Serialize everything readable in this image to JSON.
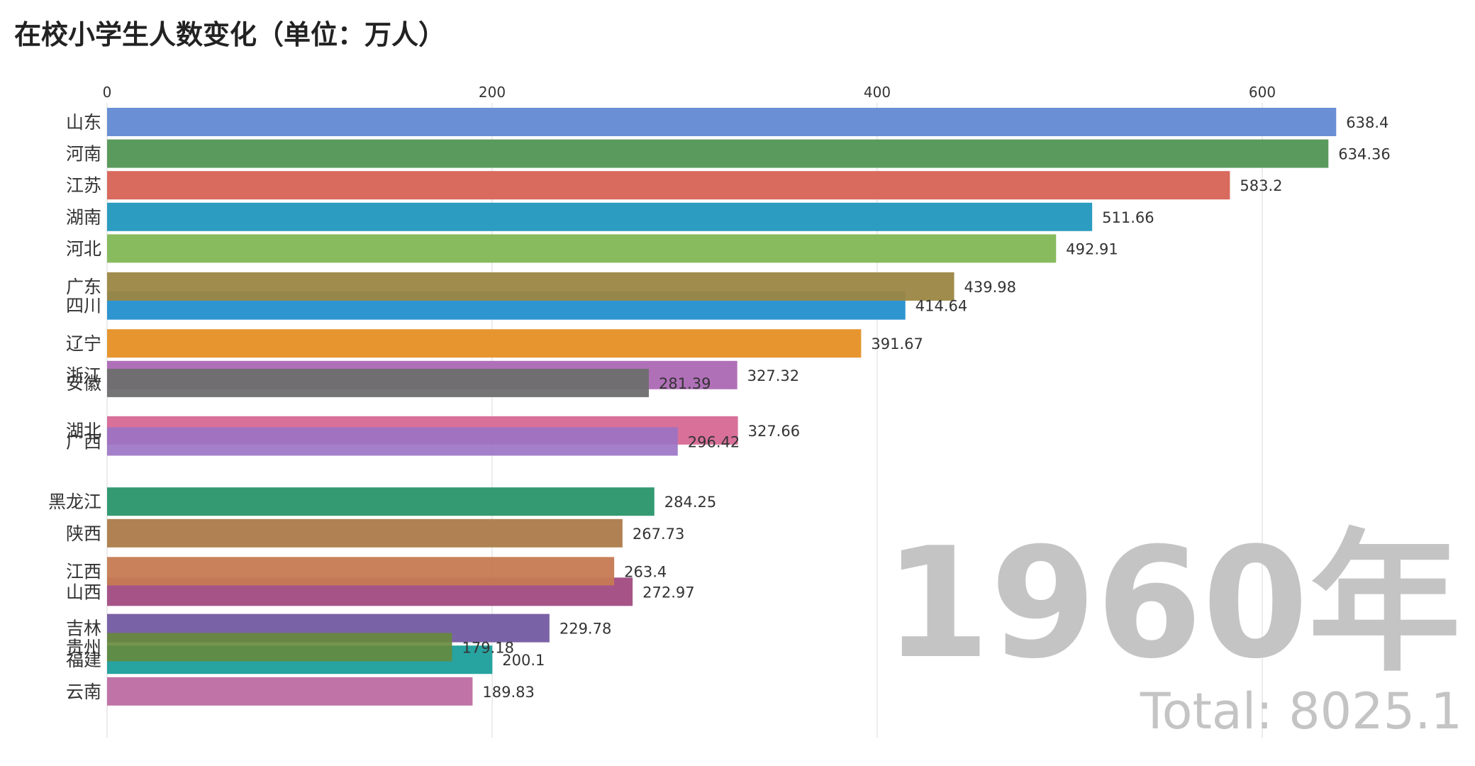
{
  "title": "在校小学生人数变化（单位：万人）",
  "year_label": "1960年",
  "total_label": "Total: 8025.1",
  "chart_data": {
    "type": "bar",
    "orientation": "horizontal",
    "title": "在校小学生人数变化（单位：万人）",
    "xlabel": "",
    "ylabel": "",
    "xlim": [
      0,
      640
    ],
    "xticks": [
      0,
      200,
      400,
      600
    ],
    "grid": true,
    "axis_position": "top",
    "categories": [
      "山东",
      "河南",
      "江苏",
      "湖南",
      "河北",
      "广东",
      "四川",
      "辽宁",
      "浙江",
      "安徽",
      "湖北",
      "广西",
      "黑龙江",
      "陕西",
      "江西",
      "山西",
      "吉林",
      "贵州",
      "福建",
      "云南"
    ],
    "values": [
      638.4,
      634.36,
      583.2,
      511.66,
      492.91,
      439.98,
      414.64,
      391.67,
      327.32,
      281.39,
      327.66,
      296.42,
      284.25,
      267.73,
      263.4,
      272.97,
      229.78,
      179.18,
      200.1,
      189.83
    ],
    "value_labels": [
      "638.4",
      "634.36",
      "583.2",
      "511.66",
      "492.91",
      "439.98",
      "414.64",
      "391.67",
      "327.32",
      "281.39",
      "327.66",
      "296.42",
      "284.25",
      "267.73",
      "263.4",
      "272.97",
      "229.78",
      "179.18",
      "200.1",
      "189.83"
    ],
    "row_positions": [
      1,
      2,
      3,
      4,
      5,
      6.2,
      6.8,
      8,
      9,
      9.25,
      10.75,
      11.1,
      13,
      14,
      15.2,
      15.85,
      17,
      17.6,
      18,
      19
    ],
    "colors": [
      "#6a8fd4",
      "#5b9a5d",
      "#d86a5e",
      "#2c9cc0",
      "#88bb5e",
      "#9b8642",
      "#2e95d1",
      "#e6952f",
      "#b070b8",
      "#6e6e6e",
      "#d8709a",
      "#9a72c4",
      "#339a72",
      "#b08253",
      "#c57a52",
      "#a65488",
      "#7a62a6",
      "#668a3c",
      "#27a3a0",
      "#c073a6"
    ],
    "opacity": [
      1,
      1,
      1,
      1,
      1,
      0.95,
      1,
      1,
      1,
      0.95,
      1,
      0.9,
      1,
      1,
      0.95,
      1,
      1,
      0.9,
      1,
      1
    ],
    "draw_order": [
      0,
      1,
      2,
      3,
      4,
      6,
      5,
      7,
      8,
      9,
      10,
      11,
      12,
      13,
      15,
      14,
      16,
      18,
      17,
      19
    ],
    "year": "1960年",
    "total": 8025.1
  }
}
